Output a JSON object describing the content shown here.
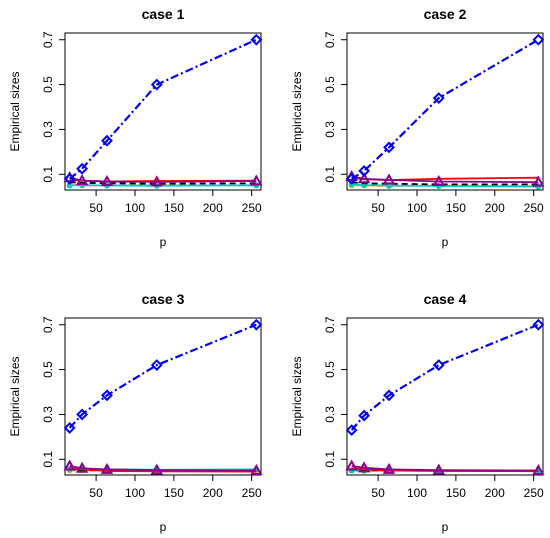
{
  "chart_data": [
    {
      "type": "line",
      "title": "case 1",
      "xlabel": "p",
      "ylabel": "Empirical sizes",
      "xlim": [
        10,
        262
      ],
      "ylim": [
        0.03,
        0.73
      ],
      "xticks": [
        "50",
        "100",
        "150",
        "200",
        "250"
      ],
      "yticks": [
        "0.1",
        "0.3",
        "0.5",
        "0.7"
      ],
      "grid": false,
      "x": [
        16,
        32,
        64,
        128,
        256
      ],
      "series": [
        {
          "color": "#0000ee",
          "dash": "dashdot",
          "marker": "diamond",
          "values": [
            0.08,
            0.125,
            0.25,
            0.5,
            0.7
          ]
        },
        {
          "color": "#ff0000",
          "dash": "solid",
          "marker": "none",
          "values": [
            0.075,
            0.072,
            0.068,
            0.07,
            0.072
          ]
        },
        {
          "color": "#8b008b",
          "dash": "solid",
          "marker": "triangle",
          "values": [
            0.085,
            0.072,
            0.068,
            0.066,
            0.07
          ]
        },
        {
          "color": "#000000",
          "dash": "dashed",
          "marker": "none",
          "values": [
            0.065,
            0.062,
            0.06,
            0.058,
            0.06
          ]
        },
        {
          "color": "#00c8c8",
          "dash": "solid",
          "marker": "circle",
          "values": [
            0.05,
            0.052,
            0.05,
            0.049,
            0.051
          ]
        },
        {
          "color": "#e8c020",
          "dash": "solid",
          "marker": "circle",
          "values": [
            0.053,
            0.05,
            0.05,
            0.051,
            0.05
          ]
        }
      ]
    },
    {
      "type": "line",
      "title": "case 2",
      "xlabel": "p",
      "ylabel": "Empirical sizes",
      "xlim": [
        10,
        262
      ],
      "ylim": [
        0.03,
        0.73
      ],
      "xticks": [
        "50",
        "100",
        "150",
        "200",
        "250"
      ],
      "yticks": [
        "0.1",
        "0.3",
        "0.5",
        "0.7"
      ],
      "grid": false,
      "x": [
        16,
        32,
        64,
        128,
        256
      ],
      "series": [
        {
          "color": "#0000ee",
          "dash": "dashdot",
          "marker": "diamond",
          "values": [
            0.08,
            0.115,
            0.22,
            0.44,
            0.7
          ]
        },
        {
          "color": "#ff0000",
          "dash": "solid",
          "marker": "none",
          "values": [
            0.085,
            0.078,
            0.074,
            0.08,
            0.085
          ]
        },
        {
          "color": "#8b008b",
          "dash": "solid",
          "marker": "triangle",
          "values": [
            0.09,
            0.08,
            0.075,
            0.068,
            0.065
          ]
        },
        {
          "color": "#000000",
          "dash": "dashed",
          "marker": "none",
          "values": [
            0.065,
            0.06,
            0.058,
            0.055,
            0.055
          ]
        },
        {
          "color": "#00c8c8",
          "dash": "solid",
          "marker": "circle",
          "values": [
            0.055,
            0.052,
            0.05,
            0.048,
            0.045
          ]
        },
        {
          "color": "#e8c020",
          "dash": "solid",
          "marker": "circle",
          "values": [
            0.05,
            0.05,
            0.048,
            0.05,
            0.048
          ]
        }
      ]
    },
    {
      "type": "line",
      "title": "case 3",
      "xlabel": "p",
      "ylabel": "Empirical sizes",
      "xlim": [
        10,
        262
      ],
      "ylim": [
        0.03,
        0.73
      ],
      "xticks": [
        "50",
        "100",
        "150",
        "200",
        "250"
      ],
      "yticks": [
        "0.1",
        "0.3",
        "0.5",
        "0.7"
      ],
      "grid": false,
      "x": [
        16,
        32,
        64,
        128,
        256
      ],
      "series": [
        {
          "color": "#0000ee",
          "dash": "dashdot",
          "marker": "diamond",
          "values": [
            0.24,
            0.3,
            0.385,
            0.52,
            0.7
          ]
        },
        {
          "color": "#ff0000",
          "dash": "solid",
          "marker": "none",
          "values": [
            0.06,
            0.055,
            0.048,
            0.046,
            0.045
          ]
        },
        {
          "color": "#8b008b",
          "dash": "solid",
          "marker": "triangle",
          "values": [
            0.07,
            0.06,
            0.055,
            0.052,
            0.05
          ]
        },
        {
          "color": "#000000",
          "dash": "dashed",
          "marker": "none",
          "values": [
            0.055,
            0.052,
            0.05,
            0.05,
            0.05
          ]
        },
        {
          "color": "#00c8c8",
          "dash": "solid",
          "marker": "circle",
          "values": [
            0.055,
            0.055,
            0.055,
            0.053,
            0.055
          ]
        },
        {
          "color": "#e8c020",
          "dash": "solid",
          "marker": "circle",
          "values": [
            0.05,
            0.052,
            0.05,
            0.05,
            0.05
          ]
        }
      ]
    },
    {
      "type": "line",
      "title": "case 4",
      "xlabel": "p",
      "ylabel": "Empirical sizes",
      "xlim": [
        10,
        262
      ],
      "ylim": [
        0.03,
        0.73
      ],
      "xticks": [
        "50",
        "100",
        "150",
        "200",
        "250"
      ],
      "yticks": [
        "0.1",
        "0.3",
        "0.5",
        "0.7"
      ],
      "grid": false,
      "x": [
        16,
        32,
        64,
        128,
        256
      ],
      "series": [
        {
          "color": "#0000ee",
          "dash": "dashdot",
          "marker": "diamond",
          "values": [
            0.23,
            0.295,
            0.385,
            0.52,
            0.7
          ]
        },
        {
          "color": "#ff0000",
          "dash": "solid",
          "marker": "none",
          "values": [
            0.06,
            0.055,
            0.05,
            0.048,
            0.047
          ]
        },
        {
          "color": "#8b008b",
          "dash": "solid",
          "marker": "triangle",
          "values": [
            0.07,
            0.062,
            0.055,
            0.052,
            0.05
          ]
        },
        {
          "color": "#000000",
          "dash": "dashed",
          "marker": "none",
          "values": [
            0.055,
            0.052,
            0.05,
            0.05,
            0.048
          ]
        },
        {
          "color": "#00c8c8",
          "dash": "solid",
          "marker": "circle",
          "values": [
            0.05,
            0.05,
            0.05,
            0.05,
            0.05
          ]
        },
        {
          "color": "#e8c020",
          "dash": "solid",
          "marker": "circle",
          "values": [
            0.05,
            0.048,
            0.05,
            0.048,
            0.048
          ]
        }
      ]
    }
  ]
}
